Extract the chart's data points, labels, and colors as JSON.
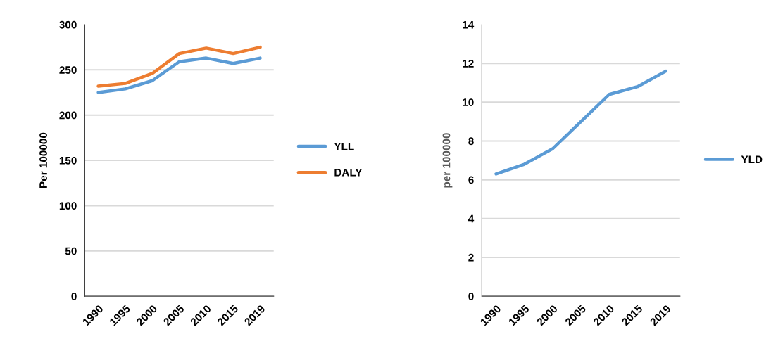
{
  "chart_data": [
    {
      "type": "line",
      "ylabel": "Per 100000",
      "categories": [
        "1990",
        "1995",
        "2000",
        "2005",
        "2010",
        "2015",
        "2019"
      ],
      "ylim": [
        0,
        300
      ],
      "yticks": [
        0,
        50,
        100,
        150,
        200,
        250,
        300
      ],
      "grid": "y",
      "legend": "right",
      "marker": "none",
      "line_style": "solid",
      "series": [
        {
          "name": "YLL",
          "color": "#5b9bd5",
          "values": [
            225,
            229,
            238,
            259,
            263,
            257,
            263
          ]
        },
        {
          "name": "DALY",
          "color": "#ed7d31",
          "values": [
            232,
            235,
            246,
            268,
            274,
            268,
            275
          ]
        }
      ]
    },
    {
      "type": "line",
      "ylabel": "per 100000",
      "categories": [
        "1990",
        "1995",
        "2000",
        "2005",
        "2010",
        "2015",
        "2019"
      ],
      "ylim": [
        0,
        14
      ],
      "yticks": [
        0,
        2,
        4,
        6,
        8,
        10,
        12,
        14
      ],
      "grid": "y",
      "legend": "right",
      "marker": "none",
      "line_style": "solid",
      "series": [
        {
          "name": "YLD",
          "color": "#5b9bd5",
          "values": [
            6.3,
            6.8,
            7.6,
            9.0,
            10.4,
            10.8,
            11.6
          ]
        }
      ]
    }
  ]
}
